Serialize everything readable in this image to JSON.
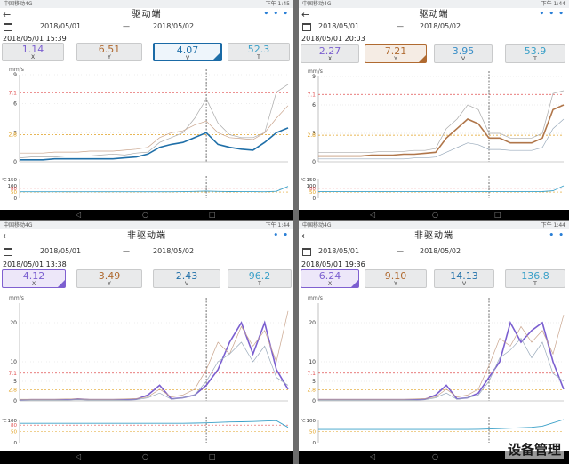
{
  "watermark": "设备管理",
  "panels": [
    {
      "status": {
        "carrier": "中国移动4G",
        "clock": "下午 1:45"
      },
      "title": "驱动端",
      "back": "←",
      "more": "• • •",
      "date_from": "2018/05/01",
      "dash": "—",
      "date_to": "2018/05/02",
      "timestamp": "2018/05/01 15:39",
      "values": [
        {
          "num": "1.14",
          "axis": "X",
          "color": "#7b5fd0"
        },
        {
          "num": "6.51",
          "axis": "Y",
          "color": "#b06a30"
        },
        {
          "num": "4.07",
          "axis": "V",
          "color": "#1f6fa8"
        },
        {
          "num": "52.3",
          "axis": "T",
          "color": "#3aa0c8"
        }
      ],
      "selected": "v",
      "unit": "mm/s",
      "temp_unit": "℃",
      "yticks": [
        "9",
        "7.1",
        "6",
        "3",
        "2.8",
        "0"
      ],
      "temp_ticks": [
        "150",
        "100",
        "80",
        "50",
        "0"
      ],
      "chart_data": {
        "type": "line",
        "ylabel": "mm/s",
        "ylim": [
          0,
          9
        ],
        "thresholds": [
          7.1,
          2.8
        ],
        "series": [
          {
            "values": [
              0.4,
              0.5,
              0.5,
              0.5,
              0.6,
              0.6,
              0.6,
              0.7,
              0.8,
              0.7,
              0.9,
              1.0,
              2.0,
              2.5,
              3.0,
              4.5,
              6.5,
              4.0,
              2.8,
              2.5,
              2.5,
              3.0,
              7.2,
              8.0
            ]
          },
          {
            "values": [
              0.9,
              0.9,
              0.9,
              1.0,
              1.0,
              1.0,
              1.1,
              1.1,
              1.1,
              1.2,
              1.3,
              1.5,
              2.5,
              3.0,
              3.2,
              3.8,
              4.2,
              3.0,
              2.5,
              2.4,
              2.3,
              3.0,
              4.5,
              5.8
            ]
          },
          {
            "values": [
              0.2,
              0.2,
              0.2,
              0.3,
              0.3,
              0.3,
              0.3,
              0.3,
              0.3,
              0.4,
              0.5,
              0.8,
              1.5,
              1.8,
              2.0,
              2.5,
              3.0,
              1.8,
              1.5,
              1.3,
              1.2,
              2.0,
              3.0,
              3.5
            ]
          }
        ],
        "temperature": [
          52,
          52,
          52,
          52,
          52,
          52,
          52,
          52,
          52,
          52,
          52,
          52,
          52,
          52,
          53,
          55,
          58,
          55,
          54,
          53,
          53,
          52,
          56,
          95
        ]
      }
    },
    {
      "status": {
        "carrier": "中国移动4G",
        "clock": "下午 1:44"
      },
      "title": "驱动端",
      "back": "←",
      "more": "• • •",
      "date_from": "2018/05/01",
      "dash": "—",
      "date_to": "2018/05/02",
      "timestamp": "2018/05/01 20:03",
      "values": [
        {
          "num": "2.27",
          "axis": "X",
          "color": "#7b5fd0"
        },
        {
          "num": "7.21",
          "axis": "Y",
          "color": "#b06a30"
        },
        {
          "num": "3.95",
          "axis": "V",
          "color": "#3a8fc8"
        },
        {
          "num": "53.9",
          "axis": "T",
          "color": "#3aa0c8"
        }
      ],
      "selected": "y",
      "unit": "mm/s",
      "temp_unit": "℃",
      "yticks": [
        "9",
        "7.1",
        "6",
        "3",
        "2.8",
        "0"
      ],
      "temp_ticks": [
        "150",
        "100",
        "80",
        "50",
        "0"
      ],
      "chart_data": {
        "type": "line",
        "ylabel": "mm/s",
        "ylim": [
          0,
          9
        ],
        "thresholds": [
          7.1,
          2.8
        ],
        "series": [
          {
            "values": [
              1.0,
              1.0,
              1.0,
              1.0,
              1.0,
              1.0,
              1.1,
              1.1,
              1.1,
              1.2,
              1.2,
              1.4,
              3.5,
              4.5,
              6.0,
              5.5,
              3.0,
              3.0,
              2.5,
              2.5,
              2.5,
              3.0,
              7.2,
              7.5
            ]
          },
          {
            "values": [
              0.6,
              0.6,
              0.6,
              0.6,
              0.6,
              0.7,
              0.7,
              0.7,
              0.8,
              0.8,
              0.9,
              1.0,
              2.5,
              3.5,
              4.5,
              4.0,
              2.5,
              2.5,
              2.0,
              2.0,
              2.0,
              2.5,
              5.5,
              6.0
            ]
          },
          {
            "values": [
              0.3,
              0.3,
              0.3,
              0.3,
              0.3,
              0.3,
              0.3,
              0.3,
              0.3,
              0.4,
              0.4,
              0.5,
              1.0,
              1.5,
              2.0,
              1.8,
              1.3,
              1.3,
              1.2,
              1.2,
              1.2,
              1.5,
              3.5,
              4.5
            ]
          }
        ],
        "temperature": [
          53,
          53,
          53,
          53,
          53,
          53,
          53,
          53,
          53,
          53,
          53,
          53,
          53,
          53,
          53,
          53,
          53,
          53,
          53,
          53,
          53,
          54,
          60,
          100
        ]
      }
    },
    {
      "status": {
        "carrier": "中国移动4G",
        "clock": "下午 1:44"
      },
      "title": "非驱动端",
      "back": "←",
      "more": "• •",
      "date_from": "2018/05/01",
      "dash": "—",
      "date_to": "2018/05/02",
      "timestamp": "2018/05/01 13:38",
      "values": [
        {
          "num": "4.12",
          "axis": "X",
          "color": "#7b5fd0"
        },
        {
          "num": "3.49",
          "axis": "Y",
          "color": "#b06a30"
        },
        {
          "num": "2.43",
          "axis": "V",
          "color": "#1f6fa8"
        },
        {
          "num": "96.2",
          "axis": "T",
          "color": "#3aa0c8"
        }
      ],
      "selected": "x",
      "unit": "mm/s",
      "temp_unit": "℃",
      "yticks": [
        "20",
        "10",
        "7.1",
        "5",
        "2.8",
        "0"
      ],
      "temp_ticks": [
        "100",
        "80",
        "50",
        "0"
      ],
      "chart_data": {
        "type": "line",
        "ylabel": "mm/s",
        "ylim": [
          0,
          25
        ],
        "thresholds": [
          7.1,
          2.8
        ],
        "series": [
          {
            "values": [
              0.2,
              0.3,
              0.3,
              0.3,
              0.3,
              0.5,
              0.3,
              0.3,
              0.3,
              0.3,
              0.4,
              1.5,
              4.0,
              0.5,
              0.8,
              1.5,
              4.0,
              8.0,
              15.0,
              20.0,
              12.0,
              20.0,
              8.0,
              3.0
            ]
          },
          {
            "values": [
              0.4,
              0.4,
              0.4,
              0.4,
              0.5,
              0.5,
              0.4,
              0.4,
              0.4,
              0.5,
              0.6,
              1.0,
              3.0,
              1.0,
              1.5,
              3.0,
              8.0,
              15.0,
              12.0,
              19.0,
              14.0,
              18.0,
              10.0,
              23.0
            ]
          },
          {
            "values": [
              0.2,
              0.2,
              0.2,
              0.2,
              0.2,
              0.3,
              0.2,
              0.2,
              0.2,
              0.2,
              0.3,
              0.8,
              2.0,
              0.4,
              0.8,
              1.5,
              5.0,
              10.0,
              12.0,
              15.0,
              10.0,
              14.0,
              6.0,
              4.0
            ]
          }
        ],
        "temperature": [
          88,
          88,
          88,
          88,
          88,
          88,
          88,
          88,
          88,
          88,
          88,
          88,
          88,
          88,
          88,
          89,
          90,
          92,
          94,
          95,
          96,
          98,
          100,
          70
        ]
      }
    },
    {
      "status": {
        "carrier": "中国移动4G",
        "clock": "下午 1:44"
      },
      "title": "非驱动端",
      "back": "←",
      "more": "• •",
      "date_from": "2018/05/01",
      "dash": "—",
      "date_to": "2018/05/02",
      "timestamp": "2018/05/01 19:36",
      "values": [
        {
          "num": "6.24",
          "axis": "X",
          "color": "#7b5fd0"
        },
        {
          "num": "9.10",
          "axis": "Y",
          "color": "#b06a30"
        },
        {
          "num": "14.13",
          "axis": "V",
          "color": "#1f6fa8"
        },
        {
          "num": "136.8",
          "axis": "T",
          "color": "#3aa0c8"
        }
      ],
      "selected": "x",
      "unit": "mm/s",
      "temp_unit": "℃",
      "yticks": [
        "20",
        "10",
        "7.1",
        "5",
        "2.8",
        "0"
      ],
      "temp_ticks": [
        "100",
        "50",
        "0"
      ],
      "chart_data": {
        "type": "line",
        "ylabel": "mm/s",
        "ylim": [
          0,
          25
        ],
        "thresholds": [
          7.1,
          2.8
        ],
        "series": [
          {
            "values": [
              0.3,
              0.3,
              0.3,
              0.3,
              0.3,
              0.3,
              0.3,
              0.3,
              0.3,
              0.3,
              0.4,
              1.5,
              4.0,
              0.5,
              0.8,
              2.0,
              6.0,
              10.0,
              20.0,
              15.0,
              18.0,
              20.0,
              10.0,
              3.0
            ]
          },
          {
            "values": [
              0.4,
              0.4,
              0.4,
              0.4,
              0.4,
              0.4,
              0.4,
              0.4,
              0.4,
              0.5,
              0.6,
              1.0,
              3.0,
              1.0,
              1.5,
              3.0,
              9.0,
              16.0,
              14.0,
              19.0,
              15.0,
              18.0,
              12.0,
              22.0
            ]
          },
          {
            "values": [
              0.2,
              0.2,
              0.2,
              0.2,
              0.2,
              0.2,
              0.2,
              0.2,
              0.2,
              0.2,
              0.3,
              0.8,
              2.0,
              0.4,
              0.8,
              1.5,
              5.0,
              11.0,
              13.0,
              16.0,
              11.0,
              15.0,
              7.0,
              5.0
            ]
          }
        ],
        "temperature": [
          60,
          60,
          60,
          60,
          60,
          60,
          60,
          60,
          60,
          60,
          60,
          60,
          60,
          60,
          60,
          61,
          62,
          64,
          66,
          68,
          70,
          75,
          90,
          120
        ]
      }
    }
  ]
}
